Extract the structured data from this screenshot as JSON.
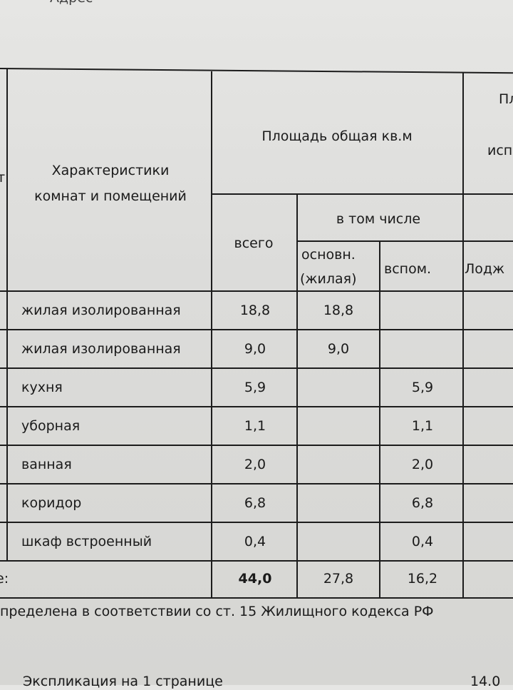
{
  "top_cut_text": "Адрес",
  "header": {
    "characteristics": [
      "Характеристики",
      "комнат и помещений"
    ],
    "area_total": "Площадь общая кв.м",
    "total": "всего",
    "including": "в том числе",
    "main": [
      "основн.",
      "(жилая)"
    ],
    "aux": "вспом.",
    "right_top": "Пл",
    "right_mid": "исп",
    "loggia": "Лодж",
    "left_edge": "т"
  },
  "rows": [
    {
      "name": "жилая изолированная",
      "total": "18,8",
      "main": "18,8",
      "aux": ""
    },
    {
      "name": "жилая изолированная",
      "total": "9,0",
      "main": "9,0",
      "aux": ""
    },
    {
      "name": "кухня",
      "total": "5,9",
      "main": "",
      "aux": "5,9"
    },
    {
      "name": "уборная",
      "total": "1,1",
      "main": "",
      "aux": "1,1"
    },
    {
      "name": "ванная",
      "total": "2,0",
      "main": "",
      "aux": "2,0"
    },
    {
      "name": "коридор",
      "total": "6,8",
      "main": "",
      "aux": "6,8"
    },
    {
      "name": "шкаф встроенный",
      "total": "0,4",
      "main": "",
      "aux": "0,4"
    }
  ],
  "totals": {
    "label": "е:",
    "total": "44,0",
    "main": "27,8",
    "aux": "16,2"
  },
  "footnote": "пределена в соответствии со ст. 15 Жилищного кодекса РФ",
  "bottom_left": "Экспликация на 1 странице",
  "bottom_right": "14.0"
}
